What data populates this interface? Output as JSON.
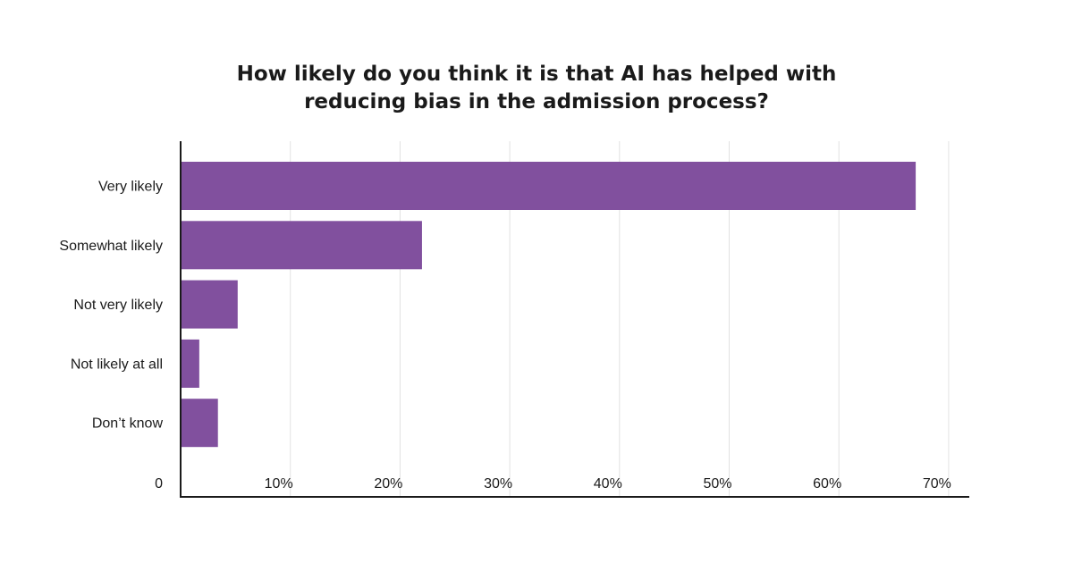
{
  "chart_data": {
    "type": "bar",
    "orientation": "horizontal",
    "title": [
      "How likely do you think it is that AI has helped with",
      "reducing bias in the admission process?"
    ],
    "categories": [
      "Very likely",
      "Somewhat likely",
      "Not very likely",
      "Not likely at all",
      "Don’t know"
    ],
    "values": [
      67,
      22,
      5.2,
      1.7,
      3.4
    ],
    "unit": "%",
    "xlim": [
      0,
      72
    ],
    "xticks": [
      0,
      10,
      20,
      30,
      40,
      50,
      60,
      70
    ],
    "xtick_labels": [
      "0",
      "10%",
      "20%",
      "30%",
      "40%",
      "50%",
      "60%",
      "70%"
    ],
    "grid": true,
    "bar_color": "#81509e",
    "grid_color": "#e2e2e2",
    "axis_color": "#1a1a1a"
  }
}
